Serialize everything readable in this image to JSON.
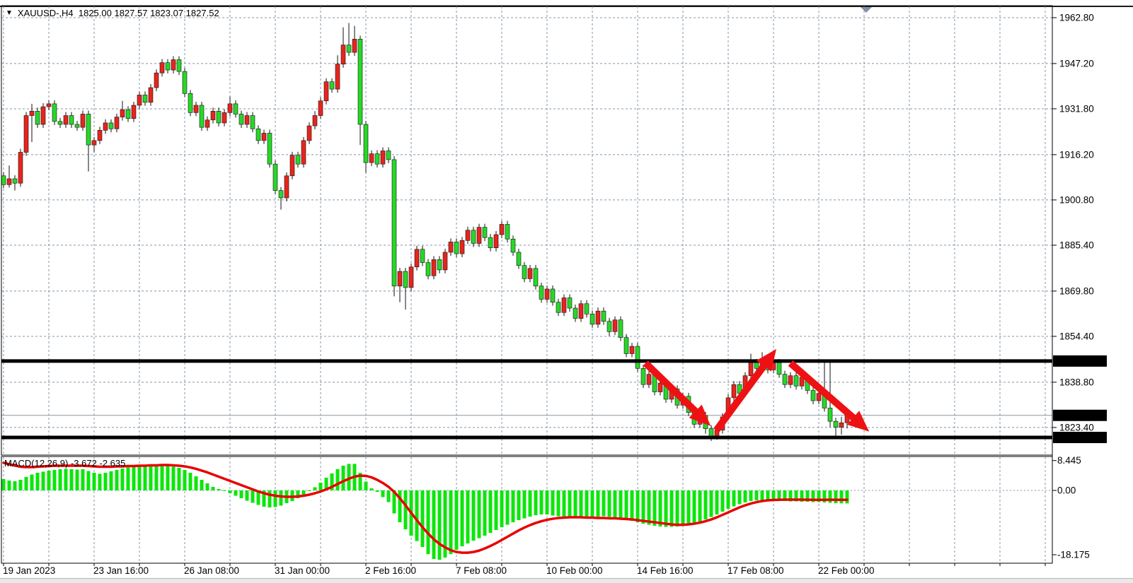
{
  "header": {
    "symbol_dropdown_icon": "▼",
    "title": "XAUUSD-,H4  1825.00 1827.57 1823.07 1827.52"
  },
  "indicator_label": {
    "name": "MACD(12,26,9)",
    "macd_value": "-3.672",
    "signal_value": "-2.635"
  },
  "price_axis": {
    "labels": [
      {
        "text": "1962.80",
        "value": 1962.8
      },
      {
        "text": "1947.20",
        "value": 1947.2
      },
      {
        "text": "1931.80",
        "value": 1931.8
      },
      {
        "text": "1916.20",
        "value": 1916.2
      },
      {
        "text": "1900.80",
        "value": 1900.8
      },
      {
        "text": "1885.40",
        "value": 1885.4
      },
      {
        "text": "1869.80",
        "value": 1869.8
      },
      {
        "text": "1854.40",
        "value": 1854.4
      },
      {
        "text": "1838.80",
        "value": 1838.8
      },
      {
        "text": "1823.40",
        "value": 1823.4
      }
    ],
    "badges": [
      {
        "text": "1846.00",
        "value": 1846.0,
        "kind": "level"
      },
      {
        "text": "1827.52",
        "value": 1827.52,
        "kind": "bid"
      },
      {
        "text": "1820.00",
        "value": 1820.0,
        "kind": "level"
      }
    ]
  },
  "macd_axis": {
    "labels": [
      {
        "text": "8.445",
        "value": 8.445
      },
      {
        "text": "0.00",
        "value": 0.0
      },
      {
        "text": "-18.175",
        "value": -18.175
      }
    ]
  },
  "time_axis": {
    "labels": [
      "19 Jan 2023",
      "23 Jan 16:00",
      "26 Jan 08:00",
      "31 Jan 00:00",
      "2 Feb 16:00",
      "7 Feb 08:00",
      "10 Feb 00:00",
      "14 Feb 16:00",
      "17 Feb 08:00",
      "22 Feb 00:00"
    ],
    "bars_per_label": 16
  },
  "colors": {
    "bull": "#e8251c",
    "bear": "#28d828",
    "wick": "#111111",
    "hist": "#0ce60c",
    "signal": "#e80000",
    "grid": "#8494a8",
    "level": "#000000",
    "bid_line": "#8a97a0",
    "arrow": "#ee1113",
    "badge_bg": "#000000",
    "badge_fg": "#ffffff",
    "shift_marker": "#7e93a8"
  },
  "chart_data": {
    "type": "candlestick",
    "symbol": "XAUUSD-",
    "timeframe": "H4",
    "current_bar": {
      "open": "1825.00",
      "high": "1827.57",
      "low": "1823.07",
      "close": "1827.52"
    },
    "levels": [
      1846.0,
      1820.0
    ],
    "bid": 1827.52,
    "ylim": [
      1816,
      1966
    ],
    "candles": [
      [
        1909,
        1910.2,
        1904.8,
        1906
      ],
      [
        1906,
        1912.5,
        1905,
        1908
      ],
      [
        1908,
        1909.2,
        1904,
        1906.5
      ],
      [
        1906.5,
        1918.2,
        1905.3,
        1917
      ],
      [
        1917,
        1930.7,
        1915.8,
        1929.5
      ],
      [
        1929.5,
        1933.5,
        1920.5,
        1931
      ],
      [
        1931,
        1932.2,
        1925.3,
        1926.5
      ],
      [
        1926.5,
        1933.7,
        1925.3,
        1932.5
      ],
      [
        1932.5,
        1934.7,
        1931.3,
        1933.5
      ],
      [
        1933.5,
        1934.7,
        1926.3,
        1927.5
      ],
      [
        1927.5,
        1928.7,
        1925.3,
        1926.5
      ],
      [
        1926.5,
        1930.7,
        1925.3,
        1929.5
      ],
      [
        1929.5,
        1930.7,
        1925.3,
        1926.5
      ],
      [
        1926.5,
        1927.7,
        1924.3,
        1925.5
      ],
      [
        1925.5,
        1931.2,
        1924.3,
        1930
      ],
      [
        1930,
        1931.2,
        1910.5,
        1919.5
      ],
      [
        1919.5,
        1922.2,
        1917,
        1921
      ],
      [
        1921,
        1925.7,
        1919.8,
        1924.5
      ],
      [
        1924.5,
        1928.2,
        1923.3,
        1927
      ],
      [
        1927,
        1928.2,
        1923.8,
        1925
      ],
      [
        1925,
        1930.2,
        1923.8,
        1929
      ],
      [
        1929,
        1934.5,
        1927.8,
        1931.5
      ],
      [
        1931.5,
        1932.7,
        1927.3,
        1928.5
      ],
      [
        1928.5,
        1934.2,
        1927.3,
        1933
      ],
      [
        1933,
        1937.7,
        1931.8,
        1936.5
      ],
      [
        1936.5,
        1937.7,
        1932.8,
        1934
      ],
      [
        1934,
        1940.2,
        1932.8,
        1939
      ],
      [
        1939,
        1945.2,
        1937.8,
        1944
      ],
      [
        1944,
        1948.7,
        1942.8,
        1947.5
      ],
      [
        1947.5,
        1948.7,
        1943.8,
        1945
      ],
      [
        1945,
        1949.7,
        1943.8,
        1948.5
      ],
      [
        1948.5,
        1949.7,
        1943.3,
        1944.5
      ],
      [
        1944.5,
        1945.7,
        1935.8,
        1937
      ],
      [
        1937,
        1938.2,
        1929.3,
        1930.5
      ],
      [
        1930.5,
        1934.2,
        1929.3,
        1933
      ],
      [
        1933,
        1934.2,
        1924.3,
        1925.5
      ],
      [
        1925.5,
        1929.2,
        1924.3,
        1928
      ],
      [
        1928,
        1932.2,
        1926.8,
        1931
      ],
      [
        1931,
        1932.2,
        1925.8,
        1927
      ],
      [
        1927,
        1931.7,
        1925.8,
        1930.5
      ],
      [
        1930.5,
        1936,
        1929.3,
        1933.5
      ],
      [
        1933.5,
        1934.7,
        1928.8,
        1930
      ],
      [
        1930,
        1931.2,
        1925.3,
        1926.5
      ],
      [
        1926.5,
        1930.7,
        1925.3,
        1929.5
      ],
      [
        1929.5,
        1930.7,
        1923.8,
        1925
      ],
      [
        1925,
        1926.2,
        1919.8,
        1921
      ],
      [
        1921,
        1924.7,
        1919.8,
        1923.5
      ],
      [
        1923.5,
        1924.7,
        1911.8,
        1913
      ],
      [
        1913,
        1914.2,
        1902.8,
        1904
      ],
      [
        1904,
        1905.2,
        1897.5,
        1901.5
      ],
      [
        1901.5,
        1910.2,
        1900.3,
        1909
      ],
      [
        1909,
        1917.2,
        1907.8,
        1916
      ],
      [
        1916,
        1917.2,
        1911.8,
        1913
      ],
      [
        1913,
        1922.2,
        1911.8,
        1921
      ],
      [
        1921,
        1927.2,
        1919.8,
        1926
      ],
      [
        1926,
        1931,
        1924.8,
        1929.5
      ],
      [
        1929.5,
        1935.7,
        1928.3,
        1934.5
      ],
      [
        1934.5,
        1942.2,
        1933.3,
        1941
      ],
      [
        1941,
        1942.2,
        1937.3,
        1938.5
      ],
      [
        1938.5,
        1950,
        1937.3,
        1947
      ],
      [
        1947,
        1959.5,
        1945.8,
        1953.5
      ],
      [
        1953.5,
        1961,
        1949.8,
        1951
      ],
      [
        1951,
        1960,
        1949.8,
        1955.5
      ],
      [
        1955.5,
        1956.7,
        1919.5,
        1926.5
      ],
      [
        1926.5,
        1927.7,
        1910,
        1913.5
      ],
      [
        1913.5,
        1917.7,
        1912.3,
        1916.5
      ],
      [
        1916.5,
        1917.7,
        1911.8,
        1913
      ],
      [
        1913,
        1918.7,
        1911.8,
        1917.5
      ],
      [
        1917.5,
        1918.7,
        1913.3,
        1914.5
      ],
      [
        1914.5,
        1915.7,
        1868,
        1871.5
      ],
      [
        1871.5,
        1877.7,
        1866,
        1876.5
      ],
      [
        1876.5,
        1877.7,
        1863.5,
        1871
      ],
      [
        1871,
        1879.2,
        1869.8,
        1878
      ],
      [
        1878,
        1885.2,
        1876.8,
        1884
      ],
      [
        1884,
        1885.2,
        1878.3,
        1879.5
      ],
      [
        1879.5,
        1880.7,
        1873.8,
        1875
      ],
      [
        1875,
        1881.7,
        1873.8,
        1880.5
      ],
      [
        1880.5,
        1881.7,
        1875.8,
        1877
      ],
      [
        1877,
        1884.2,
        1875.8,
        1883
      ],
      [
        1883,
        1887.7,
        1881.8,
        1886.5
      ],
      [
        1886.5,
        1887.7,
        1881.3,
        1882.5
      ],
      [
        1882.5,
        1888.2,
        1881.3,
        1887
      ],
      [
        1887,
        1891.7,
        1885.8,
        1890.5
      ],
      [
        1890.5,
        1891.7,
        1884.8,
        1886
      ],
      [
        1886,
        1892.7,
        1884.8,
        1891.5
      ],
      [
        1891.5,
        1892.7,
        1886.8,
        1888
      ],
      [
        1888,
        1889.2,
        1883.3,
        1884.5
      ],
      [
        1884.5,
        1890.2,
        1883.3,
        1889
      ],
      [
        1889,
        1893.7,
        1887.8,
        1892.5
      ],
      [
        1892.5,
        1893.7,
        1886.3,
        1887.5
      ],
      [
        1887.5,
        1888.7,
        1881.8,
        1883
      ],
      [
        1883,
        1884.2,
        1877.3,
        1878.5
      ],
      [
        1878.5,
        1879.7,
        1872.8,
        1874
      ],
      [
        1874,
        1878.7,
        1872.8,
        1877.5
      ],
      [
        1877.5,
        1878.7,
        1870.3,
        1871.5
      ],
      [
        1871.5,
        1872.7,
        1865.8,
        1867
      ],
      [
        1867,
        1871.7,
        1865.8,
        1870.5
      ],
      [
        1870.5,
        1871.7,
        1864.8,
        1866
      ],
      [
        1866,
        1867.2,
        1861.3,
        1862.5
      ],
      [
        1862.5,
        1868.7,
        1861.3,
        1867.5
      ],
      [
        1867.5,
        1868.7,
        1862.8,
        1864
      ],
      [
        1864,
        1865.2,
        1859.3,
        1860.5
      ],
      [
        1860.5,
        1866.7,
        1859.3,
        1865.5
      ],
      [
        1865.5,
        1866.7,
        1860.8,
        1862
      ],
      [
        1862,
        1863.2,
        1857.3,
        1858.5
      ],
      [
        1858.5,
        1864.2,
        1857.3,
        1863
      ],
      [
        1863,
        1864.2,
        1858.3,
        1859.5
      ],
      [
        1859.5,
        1860.7,
        1854.5,
        1856
      ],
      [
        1856,
        1861.2,
        1854.8,
        1860
      ],
      [
        1860,
        1861.2,
        1852.8,
        1854
      ],
      [
        1854,
        1855.2,
        1847.3,
        1848.5
      ],
      [
        1848.5,
        1852.2,
        1847.3,
        1851
      ],
      [
        1851,
        1852.2,
        1842.3,
        1843.5
      ],
      [
        1843.5,
        1844.7,
        1836.8,
        1838
      ],
      [
        1838,
        1842.7,
        1836.8,
        1841.5
      ],
      [
        1841.5,
        1842.7,
        1834.3,
        1835.5
      ],
      [
        1835.5,
        1839.7,
        1834.3,
        1838.5
      ],
      [
        1838.5,
        1839.7,
        1831.8,
        1833
      ],
      [
        1833,
        1837.7,
        1831.8,
        1836.5
      ],
      [
        1836.5,
        1837.7,
        1829.8,
        1831
      ],
      [
        1831,
        1835.2,
        1829.8,
        1834
      ],
      [
        1834,
        1835.2,
        1827.3,
        1828.5
      ],
      [
        1828.5,
        1829.7,
        1823.3,
        1824.5
      ],
      [
        1824.5,
        1828.7,
        1823.3,
        1827.5
      ],
      [
        1827.5,
        1828.7,
        1821.3,
        1823
      ],
      [
        1823,
        1824.2,
        1818.8,
        1820.5
      ],
      [
        1820.5,
        1823.7,
        1819.2,
        1822.5
      ],
      [
        1822.5,
        1828.2,
        1821.3,
        1827
      ],
      [
        1827,
        1834.7,
        1825.8,
        1833.5
      ],
      [
        1833.5,
        1839.2,
        1832.3,
        1838
      ],
      [
        1838,
        1839.2,
        1833.8,
        1835
      ],
      [
        1835,
        1842.2,
        1833.8,
        1841
      ],
      [
        1841,
        1848.5,
        1839.8,
        1845.5
      ],
      [
        1845.5,
        1846.7,
        1842.3,
        1843.5
      ],
      [
        1843.5,
        1849,
        1842.3,
        1846.5
      ],
      [
        1846.5,
        1847.7,
        1841.8,
        1843
      ],
      [
        1843,
        1846.7,
        1841.8,
        1845.5
      ],
      [
        1845.5,
        1846.7,
        1840.3,
        1841.5
      ],
      [
        1841.5,
        1842.7,
        1836.8,
        1838
      ],
      [
        1838,
        1842.2,
        1836.8,
        1841
      ],
      [
        1841,
        1842.2,
        1836.3,
        1837.5
      ],
      [
        1837.5,
        1841.7,
        1836.3,
        1840.5
      ],
      [
        1840.5,
        1841.7,
        1834.8,
        1836
      ],
      [
        1836,
        1837.2,
        1831.3,
        1832.5
      ],
      [
        1832.5,
        1836.2,
        1831.3,
        1835
      ],
      [
        1835,
        1845.5,
        1828.8,
        1830
      ],
      [
        1830,
        1846.5,
        1823.5,
        1825.5
      ],
      [
        1825.5,
        1826.7,
        1820.3,
        1823.5
      ],
      [
        1823.5,
        1827,
        1821,
        1825
      ],
      [
        1825,
        1827.57,
        1823.07,
        1827.52
      ]
    ],
    "macd": {
      "params": "12,26,9",
      "last_macd": -3.672,
      "last_signal": -2.635,
      "ylim": [
        -19.8,
        8.445
      ],
      "histogram": [
        3.2,
        2.8,
        2.6,
        3.0,
        3.8,
        4.5,
        5.0,
        5.3,
        5.6,
        5.8,
        6.0,
        6.1,
        6.0,
        5.9,
        6.0,
        5.5,
        5.0,
        4.7,
        5.0,
        5.4,
        5.8,
        6.2,
        6.5,
        6.6,
        6.7,
        6.8,
        6.9,
        7.0,
        7.0,
        6.9,
        6.7,
        6.4,
        5.8,
        5.0,
        4.0,
        3.0,
        2.0,
        1.0,
        0.4,
        -0.2,
        -0.8,
        -1.5,
        -2.2,
        -2.9,
        -3.5,
        -4.1,
        -4.6,
        -4.8,
        -4.7,
        -4.3,
        -3.6,
        -3.0,
        -2.2,
        -1.2,
        -0.2,
        0.9,
        2.2,
        3.6,
        4.8,
        6.0,
        7.0,
        7.5,
        7.5,
        5.0,
        2.5,
        0.6,
        -0.4,
        -1.9,
        -3.3,
        -6.5,
        -9.0,
        -11.0,
        -12.8,
        -14.3,
        -16.0,
        -18.0,
        -19.4,
        -19.6,
        -19.0,
        -18.0,
        -16.8,
        -15.8,
        -15.0,
        -14.2,
        -13.5,
        -12.8,
        -12.0,
        -11.2,
        -10.4,
        -9.7,
        -9.0,
        -8.4,
        -7.9,
        -7.4,
        -7.0,
        -6.8,
        -6.8,
        -7.1,
        -7.3,
        -7.4,
        -7.5,
        -7.5,
        -7.6,
        -7.6,
        -7.5,
        -7.4,
        -7.3,
        -7.5,
        -7.7,
        -8.0,
        -8.3,
        -8.6,
        -9.0,
        -9.4,
        -9.7,
        -10.0,
        -10.2,
        -10.3,
        -10.3,
        -10.2,
        -10.0,
        -9.7,
        -9.3,
        -8.8,
        -8.2,
        -7.5,
        -6.8,
        -6.0,
        -5.2,
        -4.5,
        -3.9,
        -3.4,
        -3.0,
        -2.8,
        -2.7,
        -2.7,
        -2.8,
        -2.9,
        -3.0,
        -3.1,
        -3.1,
        -3.2,
        -3.2,
        -3.3,
        -3.3,
        -3.4,
        -3.5,
        -3.6,
        -3.65,
        -3.672
      ],
      "signal": [
        7.8,
        7.4,
        7.0,
        6.7,
        6.6,
        6.6,
        6.7,
        6.8,
        6.9,
        7.0,
        7.0,
        7.0,
        7.0,
        7.0,
        7.0,
        6.9,
        6.8,
        6.7,
        6.7,
        6.7,
        6.8,
        6.8,
        6.9,
        6.9,
        7.0,
        7.0,
        7.1,
        7.1,
        7.2,
        7.2,
        7.1,
        7.0,
        6.8,
        6.5,
        6.1,
        5.6,
        5.1,
        4.5,
        3.9,
        3.3,
        2.7,
        2.1,
        1.5,
        0.9,
        0.3,
        -0.3,
        -0.8,
        -1.2,
        -1.5,
        -1.7,
        -1.8,
        -1.8,
        -1.7,
        -1.5,
        -1.2,
        -0.8,
        -0.3,
        0.3,
        1.0,
        1.8,
        2.6,
        3.3,
        3.9,
        4.2,
        4.1,
        3.7,
        3.0,
        2.1,
        1.0,
        -0.4,
        -2.2,
        -4.2,
        -6.3,
        -8.4,
        -10.4,
        -12.2,
        -13.8,
        -15.1,
        -16.1,
        -16.9,
        -17.4,
        -17.6,
        -17.6,
        -17.4,
        -17.0,
        -16.4,
        -15.7,
        -14.9,
        -14.0,
        -13.1,
        -12.2,
        -11.3,
        -10.5,
        -9.8,
        -9.2,
        -8.7,
        -8.3,
        -8.0,
        -7.8,
        -7.7,
        -7.6,
        -7.6,
        -7.6,
        -7.7,
        -7.7,
        -7.8,
        -7.8,
        -7.9,
        -7.9,
        -8.0,
        -8.1,
        -8.2,
        -8.4,
        -8.6,
        -8.8,
        -9.0,
        -9.2,
        -9.4,
        -9.6,
        -9.7,
        -9.7,
        -9.6,
        -9.4,
        -9.1,
        -8.7,
        -8.2,
        -7.6,
        -6.9,
        -6.2,
        -5.5,
        -4.8,
        -4.2,
        -3.7,
        -3.3,
        -3.0,
        -2.8,
        -2.7,
        -2.65,
        -2.6,
        -2.6,
        -2.6,
        -2.6,
        -2.62,
        -2.64,
        -2.64,
        -2.64,
        -2.63,
        -2.635,
        -2.64,
        -2.635
      ]
    },
    "arrows": [
      {
        "from": {
          "bar": 113.4,
          "price": 1845.3
        },
        "to": {
          "bar": 124.9,
          "price": 1823.9
        },
        "dir": "down"
      },
      {
        "from": {
          "bar": 125.9,
          "price": 1822.4
        },
        "to": {
          "bar": 136.5,
          "price": 1850.1
        },
        "dir": "up"
      },
      {
        "from": {
          "bar": 139.0,
          "price": 1845.3
        },
        "to": {
          "bar": 152.9,
          "price": 1822.0
        },
        "dir": "down"
      }
    ]
  }
}
